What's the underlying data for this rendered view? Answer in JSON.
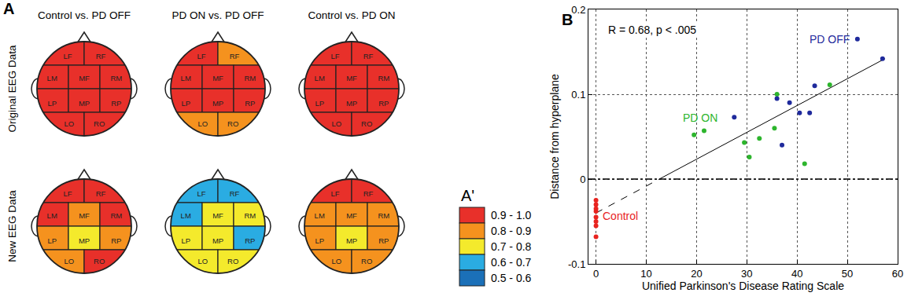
{
  "panel_labels": [
    "A",
    "B"
  ],
  "panel_a": {
    "columns": [
      "Control vs. PD OFF",
      "PD ON vs. PD OFF",
      "Control vs. PD ON"
    ],
    "region_names": [
      "LF",
      "RF",
      "LM",
      "MF",
      "RM",
      "LP",
      "MP",
      "RP",
      "LO",
      "RO"
    ],
    "rows": [
      {
        "title": "Original EEG Data",
        "maps": [
          [
            "0.9 - 1.0",
            "0.9 - 1.0",
            "0.9 - 1.0",
            "0.9 - 1.0",
            "0.9 - 1.0",
            "0.9 - 1.0",
            "0.9 - 1.0",
            "0.9 - 1.0",
            "0.9 - 1.0",
            "0.9 - 1.0"
          ],
          [
            "0.9 - 1.0",
            "0.8 - 0.9",
            "0.9 - 1.0",
            "0.9 - 1.0",
            "0.9 - 1.0",
            "0.9 - 1.0",
            "0.9 - 1.0",
            "0.9 - 1.0",
            "0.8 - 0.9",
            "0.8 - 0.9"
          ],
          [
            "0.9 - 1.0",
            "0.9 - 1.0",
            "0.9 - 1.0",
            "0.9 - 1.0",
            "0.9 - 1.0",
            "0.9 - 1.0",
            "0.9 - 1.0",
            "0.9 - 1.0",
            "0.9 - 1.0",
            "0.9 - 1.0"
          ]
        ]
      },
      {
        "title": "New EEG Data",
        "maps": [
          [
            "0.9 - 1.0",
            "0.9 - 1.0",
            "0.9 - 1.0",
            "0.8 - 0.9",
            "0.9 - 1.0",
            "0.8 - 0.9",
            "0.7 - 0.8",
            "0.8 - 0.9",
            "0.8 - 0.9",
            "0.9 - 1.0"
          ],
          [
            "0.6 - 0.7",
            "0.6 - 0.7",
            "0.6 - 0.7",
            "0.7 - 0.8",
            "0.7 - 0.8",
            "0.7 - 0.8",
            "0.7 - 0.8",
            "0.6 - 0.7",
            "0.7 - 0.8",
            "0.7 - 0.8"
          ],
          [
            "0.9 - 1.0",
            "0.9 - 1.0",
            "0.8 - 0.9",
            "0.8 - 0.9",
            "0.8 - 0.9",
            "0.8 - 0.9",
            "0.7 - 0.8",
            "0.8 - 0.9",
            "0.8 - 0.9",
            "0.8 - 0.9"
          ]
        ]
      }
    ],
    "legend": {
      "title": "A'",
      "bins": [
        {
          "label": "0.9 - 1.0",
          "color": "#e8302a"
        },
        {
          "label": "0.8 - 0.9",
          "color": "#f5921e"
        },
        {
          "label": "0.7 - 0.8",
          "color": "#f4ea2c"
        },
        {
          "label": "0.6 - 0.7",
          "color": "#2aace2"
        },
        {
          "label": "0.5 - 0.6",
          "color": "#1b70b8"
        }
      ]
    }
  },
  "chart_data": {
    "type": "scatter",
    "x_label": "Unified Parkinson's Disease Rating Scale",
    "y_label": "Distance from hyperplane",
    "annotations": [
      "R = 0.68, p < .005"
    ],
    "xlim": [
      -1.5,
      60
    ],
    "xticks": [
      0,
      10,
      20,
      30,
      40,
      50,
      60
    ],
    "ylim": [
      -0.1,
      0.2
    ],
    "yticks": [
      -0.1,
      0,
      0.1,
      0.2
    ],
    "grid": true,
    "series": [
      {
        "name": "Control",
        "color": "#e8231f",
        "marker": "circle",
        "x": [
          0,
          0,
          0,
          0,
          0,
          0,
          0,
          0
        ],
        "values": [
          -0.025,
          -0.03,
          -0.035,
          -0.038,
          -0.045,
          -0.05,
          -0.055,
          -0.068
        ]
      },
      {
        "name": "PD ON",
        "color": "#2db52d",
        "marker": "circle",
        "x": [
          19.5,
          21.5,
          29.5,
          30.5,
          32.5,
          35.5,
          36,
          41.5,
          46.5
        ],
        "values": [
          0.052,
          0.057,
          0.043,
          0.026,
          0.048,
          0.06,
          0.1,
          0.018,
          0.111
        ]
      },
      {
        "name": "PD OFF",
        "color": "#1f2a9c",
        "marker": "circle",
        "x": [
          27.5,
          36,
          37,
          38.5,
          40.5,
          42.5,
          43.5,
          52,
          57
        ],
        "values": [
          0.073,
          0.095,
          0.04,
          0.09,
          0.078,
          0.078,
          0.11,
          0.165,
          0.142
        ]
      }
    ],
    "fit": [
      {
        "x": [
          0,
          12.6
        ],
        "values": [
          -0.04,
          0
        ],
        "line_style": "dash",
        "color": "#000000"
      },
      {
        "x": [
          12.6,
          57.5
        ],
        "values": [
          0,
          0.142
        ],
        "line_style": "solid",
        "color": "#000000"
      }
    ],
    "reference_line": {
      "value": 0,
      "line_style": "dashdot",
      "color": "#000000"
    }
  }
}
